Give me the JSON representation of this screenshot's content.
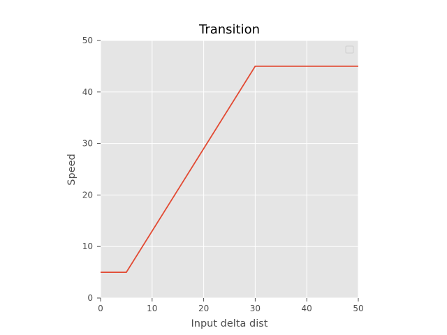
{
  "chart_data": {
    "type": "line",
    "title": "Transition",
    "xlabel": "Input delta dist",
    "ylabel": "Speed",
    "xlim": [
      0,
      50
    ],
    "ylim": [
      0,
      50
    ],
    "xticks": [
      0,
      10,
      20,
      30,
      40,
      50
    ],
    "yticks": [
      0,
      10,
      20,
      30,
      40,
      50
    ],
    "grid": true,
    "legend": "top-right (empty)",
    "colors": {
      "plot_background": "#e5e5e5",
      "grid": "#ffffff",
      "line": "#e24a33",
      "tick_text": "#4d4d4d",
      "title_text": "#000000"
    },
    "series": [
      {
        "x": [
          0,
          5,
          30,
          50
        ],
        "y": [
          5,
          5,
          45,
          45
        ]
      }
    ]
  }
}
